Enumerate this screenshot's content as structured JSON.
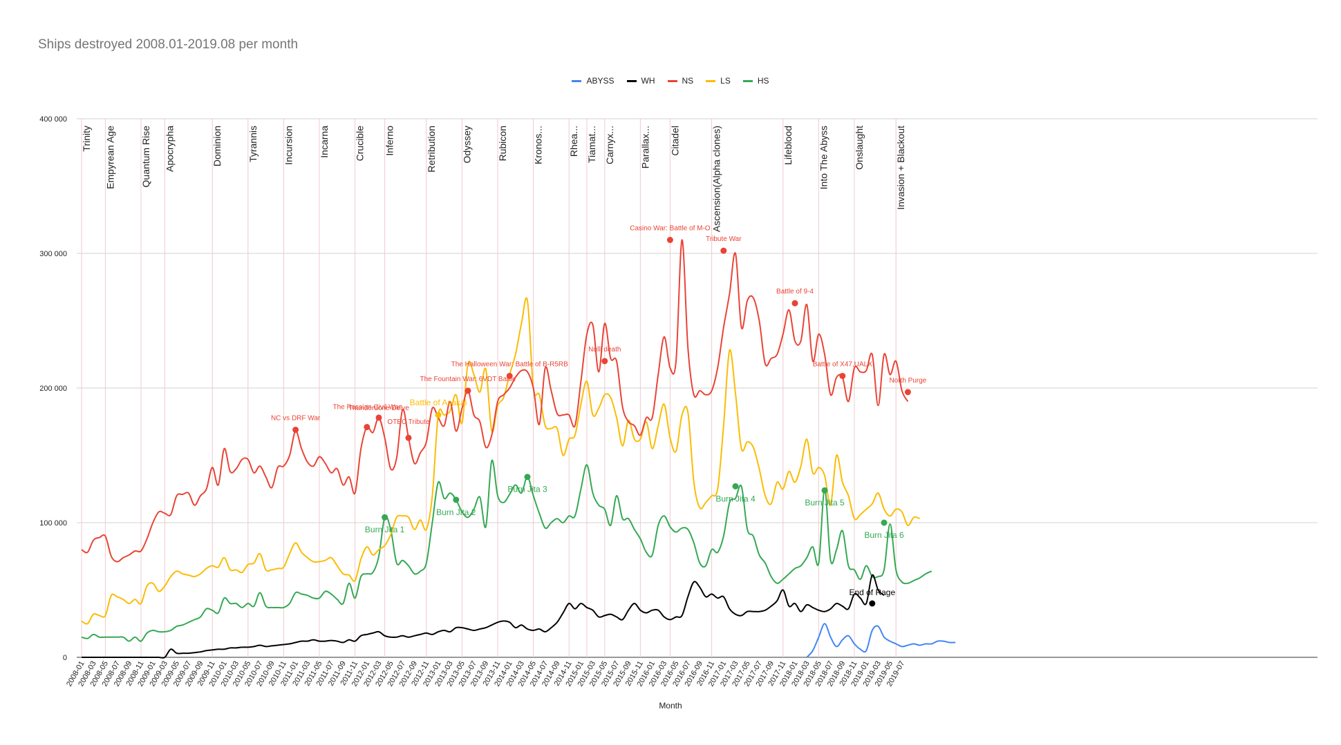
{
  "chart_data": {
    "type": "line",
    "title": "Ships destroyed 2008.01-2019.08 per month",
    "xlabel": "Month",
    "ylabel": "",
    "ylim": [
      0,
      400000
    ],
    "yticks": [
      0,
      100000,
      200000,
      300000,
      400000
    ],
    "ytick_labels": [
      "0",
      "100 000",
      "200 000",
      "300 000",
      "400 000"
    ],
    "grid": true,
    "legend_position": "top",
    "x_tick_labels": [
      "2008-01",
      "2008-03",
      "2008-05",
      "2008-07",
      "2008-09",
      "2008-11",
      "2009-01",
      "2009-03",
      "2009-05",
      "2009-07",
      "2009-09",
      "2009-11",
      "2010-01",
      "2010-03",
      "2010-05",
      "2010-07",
      "2010-09",
      "2010-11",
      "2011-01",
      "2011-03",
      "2011-05",
      "2011-07",
      "2011-09",
      "2011-11",
      "2012-01",
      "2012-03",
      "2012-05",
      "2012-07",
      "2012-09",
      "2012-11",
      "2013-01",
      "2013-03",
      "2013-05",
      "2013-07",
      "2013-09",
      "2013-11",
      "2014-01",
      "2014-03",
      "2014-05",
      "2014-07",
      "2014-09",
      "2014-11",
      "2015-01",
      "2015-03",
      "2015-05",
      "2015-07",
      "2015-09",
      "2015-11",
      "2016-01",
      "2016-03",
      "2016-05",
      "2016-07",
      "2016-09",
      "2016-11",
      "2017-01",
      "2017-03",
      "2017-05",
      "2017-07",
      "2017-09",
      "2017-11",
      "2018-01",
      "2018-03",
      "2018-05",
      "2018-07",
      "2018-09",
      "2018-11",
      "2019-01",
      "2019-03",
      "2019-05",
      "2019-07"
    ],
    "series": [
      {
        "name": "ABYSS",
        "color": "#4285f4",
        "start_index": 122,
        "values": [
          0,
          5000,
          15000,
          25000,
          15000,
          8000,
          13000,
          16000,
          10000,
          6000,
          5000,
          20000,
          23000,
          15000,
          12000,
          10000,
          8000,
          9000,
          10000,
          9000,
          10000,
          10000,
          12000,
          12000,
          11000,
          11000
        ]
      },
      {
        "name": "WH",
        "color": "#000000",
        "start_index": 0,
        "values": [
          0,
          0,
          0,
          0,
          0,
          0,
          0,
          0,
          0,
          0,
          0,
          0,
          0,
          0,
          0,
          6000,
          3000,
          3000,
          3000,
          3500,
          4000,
          5000,
          5500,
          6000,
          6000,
          7000,
          7000,
          7500,
          7500,
          8000,
          9000,
          8000,
          8500,
          9000,
          9500,
          10000,
          11000,
          12000,
          12000,
          13000,
          12000,
          12000,
          12500,
          12000,
          11000,
          13000,
          12000,
          16000,
          17000,
          18000,
          19000,
          16000,
          15000,
          15000,
          16000,
          15000,
          16000,
          17000,
          18000,
          17000,
          19000,
          20000,
          19000,
          22000,
          22000,
          21000,
          20000,
          21000,
          22000,
          24000,
          26000,
          27000,
          26000,
          22000,
          24000,
          21000,
          20000,
          21000,
          19000,
          22000,
          26000,
          33000,
          40000,
          36000,
          40000,
          37000,
          35000,
          30000,
          31000,
          32000,
          30000,
          28000,
          35000,
          40000,
          35000,
          33000,
          35000,
          35000,
          30000,
          28000,
          30000,
          31000,
          45000,
          56000,
          52000,
          45000,
          47000,
          44000,
          45000,
          36000,
          32000,
          31000,
          34000,
          34000,
          34000,
          35000,
          38000,
          42000,
          50000,
          38000,
          40000,
          34000,
          39000,
          37000,
          35000,
          34000,
          36000,
          40000,
          38000,
          36000,
          47000,
          44000,
          40000,
          61000,
          50000,
          46000
        ]
      },
      {
        "name": "NS",
        "color": "#ea4335",
        "start_index": 0,
        "values": [
          80000,
          78000,
          87000,
          89000,
          90000,
          75000,
          71000,
          74000,
          76000,
          79000,
          79000,
          88000,
          100000,
          108000,
          107000,
          106000,
          120000,
          121000,
          122000,
          113000,
          120000,
          125000,
          141000,
          128000,
          155000,
          138000,
          140000,
          147000,
          147000,
          137000,
          142000,
          134000,
          126000,
          141000,
          142000,
          150000,
          168000,
          155000,
          145000,
          142000,
          149000,
          144000,
          137000,
          140000,
          128000,
          134000,
          122000,
          155000,
          171000,
          167000,
          178000,
          163000,
          140000,
          148000,
          184000,
          163000,
          144000,
          152000,
          160000,
          185000,
          178000,
          172000,
          190000,
          168000,
          185000,
          198000,
          180000,
          175000,
          156000,
          165000,
          190000,
          195000,
          200000,
          208000,
          213000,
          212000,
          200000,
          173000,
          215000,
          198000,
          181000,
          180000,
          180000,
          172000,
          205000,
          240000,
          247000,
          212000,
          248000,
          222000,
          220000,
          186000,
          175000,
          172000,
          165000,
          178000,
          178000,
          210000,
          238000,
          215000,
          220000,
          310000,
          230000,
          195000,
          198000,
          195000,
          198000,
          215000,
          245000,
          270000,
          300000,
          245000,
          265000,
          267000,
          250000,
          218000,
          222000,
          225000,
          240000,
          258000,
          235000,
          235000,
          262000,
          220000,
          240000,
          225000,
          195000,
          208000,
          208000,
          190000,
          215000,
          212000,
          213000,
          225000,
          187000,
          225000,
          210000,
          220000,
          198000,
          190000
        ]
      },
      {
        "name": "LS",
        "color": "#fbbc04",
        "start_index": 0,
        "values": [
          27000,
          25000,
          32000,
          31000,
          31000,
          46000,
          45000,
          43000,
          40000,
          43000,
          40000,
          53000,
          55000,
          49000,
          53000,
          60000,
          64000,
          62000,
          61000,
          60000,
          62000,
          66000,
          68000,
          67000,
          74000,
          65000,
          65000,
          63000,
          69000,
          70000,
          77000,
          65000,
          65000,
          66000,
          67000,
          77000,
          85000,
          78000,
          74000,
          71000,
          71000,
          72000,
          74000,
          68000,
          62000,
          61000,
          57000,
          73000,
          82000,
          76000,
          80000,
          83000,
          91000,
          104000,
          105000,
          104000,
          95000,
          102000,
          95000,
          120000,
          180000,
          180000,
          183000,
          195000,
          174000,
          218000,
          210000,
          197000,
          214000,
          168000,
          187000,
          193000,
          210000,
          225000,
          248000,
          265000,
          200000,
          195000,
          172000,
          170000,
          170000,
          150000,
          162000,
          165000,
          188000,
          205000,
          180000,
          185000,
          195000,
          193000,
          178000,
          157000,
          176000,
          162000,
          162000,
          175000,
          155000,
          172000,
          188000,
          163000,
          153000,
          180000,
          182000,
          130000,
          111000,
          115000,
          120000,
          125000,
          172000,
          228000,
          196000,
          155000,
          160000,
          156000,
          140000,
          120000,
          114000,
          130000,
          125000,
          138000,
          130000,
          142000,
          162000,
          137000,
          141000,
          135000,
          113000,
          150000,
          130000,
          120000,
          103000,
          106000,
          110000,
          114000,
          122000,
          110000,
          105000,
          110000,
          108000,
          98000,
          104000,
          103000
        ]
      },
      {
        "name": "HS",
        "color": "#34a853",
        "start_index": 0,
        "values": [
          15000,
          14000,
          17000,
          15000,
          15000,
          15000,
          15000,
          15000,
          12000,
          15000,
          12000,
          18000,
          20000,
          19000,
          19000,
          20000,
          23000,
          24000,
          26000,
          28000,
          30000,
          36000,
          35000,
          33000,
          44000,
          40000,
          40000,
          37000,
          40000,
          38000,
          48000,
          38000,
          37000,
          37000,
          37000,
          40000,
          48000,
          47000,
          46000,
          44000,
          44000,
          49000,
          47000,
          43000,
          40000,
          55000,
          44000,
          60000,
          62000,
          63000,
          75000,
          104000,
          95000,
          70000,
          72000,
          68000,
          62000,
          64000,
          70000,
          100000,
          130000,
          118000,
          122000,
          117000,
          108000,
          104000,
          110000,
          119000,
          97000,
          146000,
          120000,
          115000,
          121000,
          128000,
          122000,
          134000,
          120000,
          107000,
          96000,
          100000,
          103000,
          100000,
          105000,
          105000,
          125000,
          143000,
          122000,
          113000,
          110000,
          98000,
          120000,
          103000,
          103000,
          95000,
          88000,
          78000,
          76000,
          98000,
          105000,
          97000,
          93000,
          96000,
          95000,
          85000,
          70000,
          68000,
          80000,
          78000,
          90000,
          115000,
          118000,
          127000,
          95000,
          90000,
          76000,
          70000,
          60000,
          55000,
          58000,
          62000,
          66000,
          68000,
          74000,
          82000,
          70000,
          125000,
          72000,
          80000,
          94000,
          68000,
          65000,
          58000,
          68000,
          60000,
          60000,
          65000,
          99000,
          65000,
          56000,
          55000,
          57000,
          59000,
          62000,
          64000
        ]
      }
    ],
    "release_labels": [
      {
        "name": "Trinity",
        "index": 0
      },
      {
        "name": "Empyrean Age",
        "index": 4
      },
      {
        "name": "Quantum Rise",
        "index": 10
      },
      {
        "name": "Apocrypha",
        "index": 14
      },
      {
        "name": "Dominion",
        "index": 22
      },
      {
        "name": "Tyrannis",
        "index": 28
      },
      {
        "name": "Incursion",
        "index": 34
      },
      {
        "name": "Incarna",
        "index": 40
      },
      {
        "name": "Crucible",
        "index": 46
      },
      {
        "name": "Inferno",
        "index": 51
      },
      {
        "name": "Retribution",
        "index": 58
      },
      {
        "name": "Odyssey",
        "index": 64
      },
      {
        "name": "Rubicon",
        "index": 70
      },
      {
        "name": "Kronos...",
        "index": 76
      },
      {
        "name": "Rhea...",
        "index": 82
      },
      {
        "name": "Tiamat...",
        "index": 85
      },
      {
        "name": "Carnyx...",
        "index": 88
      },
      {
        "name": "Parallax...",
        "index": 94
      },
      {
        "name": "Citadel",
        "index": 99
      },
      {
        "name": "Ascension(Alpha clones)",
        "index": 106
      },
      {
        "name": "Lifeblood",
        "index": 118
      },
      {
        "name": "Into The Abyss",
        "index": 124
      },
      {
        "name": "Onslaught",
        "index": 130
      },
      {
        "name": "Invasion + Blackout",
        "index": 137
      }
    ],
    "annotations": [
      {
        "text": "NC vs DRF War",
        "series": "NS",
        "index": 36,
        "value": 169000
      },
      {
        "text": "Thunderdone Delve",
        "series": "NS",
        "index": 50,
        "value": 178000
      },
      {
        "text": "The Russian Civil War",
        "series": "NS",
        "index": 48,
        "value": 171000
      },
      {
        "text": "OTEC Tribute",
        "series": "NS",
        "index": 55,
        "value": 163000
      },
      {
        "text": "Battle of Asakai",
        "series": "LS",
        "index": 60,
        "value": 180000
      },
      {
        "text": "The Fountain War: 6VDT Battle",
        "series": "NS",
        "index": 65,
        "value": 198000
      },
      {
        "text": "The Halloween War: Battle of B-R5RB",
        "series": "NS",
        "index": 72,
        "value": 209000
      },
      {
        "text": "Nulli death",
        "series": "NS",
        "index": 88,
        "value": 220000
      },
      {
        "text": "Casino War: Battle of M-O",
        "series": "NS",
        "index": 99,
        "value": 310000
      },
      {
        "text": "Tribute War",
        "series": "NS",
        "index": 108,
        "value": 302000
      },
      {
        "text": "Battle of 9-4",
        "series": "NS",
        "index": 120,
        "value": 263000
      },
      {
        "text": "Battle of X47,UALX",
        "series": "NS",
        "index": 128,
        "value": 209000
      },
      {
        "text": "North Purge",
        "series": "NS",
        "index": 139,
        "value": 197000
      },
      {
        "text": "Burn Jita 1",
        "series": "HS",
        "index": 51,
        "value": 104000
      },
      {
        "text": "Burn Jita 2",
        "series": "HS",
        "index": 63,
        "value": 117000
      },
      {
        "text": "Burn Jita 3",
        "series": "HS",
        "index": 75,
        "value": 134000
      },
      {
        "text": "Burn Jita 4",
        "series": "HS",
        "index": 110,
        "value": 127000
      },
      {
        "text": "Burn Jita 5",
        "series": "HS",
        "index": 125,
        "value": 124000
      },
      {
        "text": "Burn Jita 6",
        "series": "HS",
        "index": 135,
        "value": 100000
      },
      {
        "text": "End of Rage",
        "series": "WH",
        "index": 133,
        "value": 40000
      }
    ]
  }
}
